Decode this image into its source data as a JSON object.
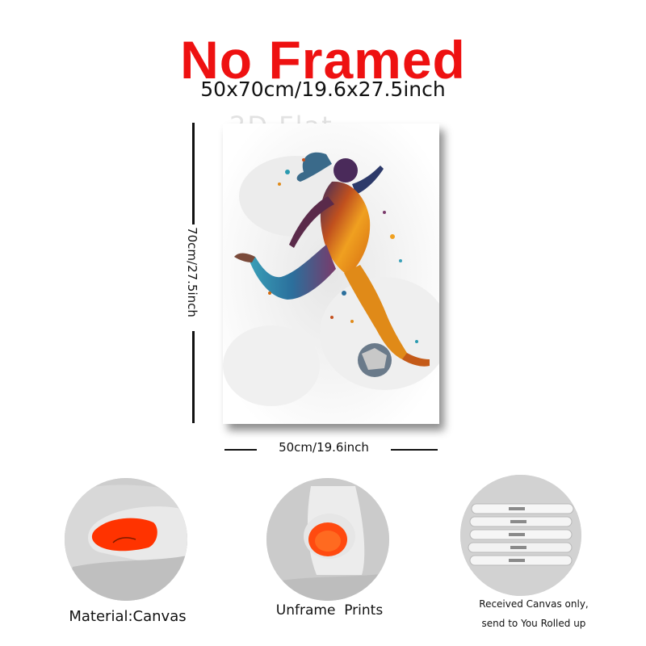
{
  "header": {
    "title": "No Framed",
    "size": "50x70cm/19.6x27.5inch"
  },
  "poster": {
    "watermark": "2D Flat"
  },
  "dimensions": {
    "height_label": "70cm/27.5inch",
    "width_label": "50cm/19.6inch"
  },
  "features": [
    {
      "caption": "Material:Canvas"
    },
    {
      "caption": "Unframe  Prints"
    },
    {
      "caption_line1": "Received Canvas only,",
      "caption_line2": "send to You Rolled up"
    }
  ],
  "colors": {
    "headline": "#ee1111",
    "canvas_inner": "#ff3300"
  }
}
